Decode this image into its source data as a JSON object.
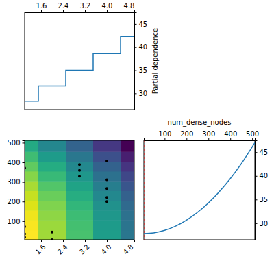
{
  "chart_data": [
    {
      "type": "line",
      "line_style": "step",
      "color": "#1f77b4",
      "ylabel": "Partial dependence",
      "x": [
        1,
        2,
        3,
        4,
        5
      ],
      "values": [
        28.3,
        31.6,
        35.0,
        38.6,
        42.3
      ],
      "xlim": [
        1,
        5
      ],
      "xticks": [
        1.6,
        2.4,
        3.2,
        {
          "value": 4,
          "label": "4.0"
        },
        4.8
      ],
      "ylim": [
        26.5,
        47.5
      ],
      "yticks": [
        30,
        35,
        40,
        45
      ]
    },
    {
      "type": "contour",
      "x_bins": [
        1,
        1.5,
        2.5,
        3.5,
        4.5,
        5
      ],
      "y_bins": [
        5,
        55,
        105,
        155,
        205,
        255,
        305,
        355,
        405,
        455,
        512
      ],
      "cells": [
        [
          28.3,
          31.6,
          35.0,
          38.6,
          42.3
        ],
        [
          28.5,
          31.8,
          35.2,
          38.8,
          42.5
        ],
        [
          28.9,
          32.2,
          35.6,
          39.2,
          42.9
        ],
        [
          29.5,
          32.8,
          36.2,
          39.8,
          43.5
        ],
        [
          30.3,
          33.6,
          37.0,
          40.6,
          44.3
        ],
        [
          31.3,
          34.6,
          38.0,
          41.6,
          45.3
        ],
        [
          32.5,
          35.8,
          39.2,
          42.8,
          46.5
        ],
        [
          33.9,
          37.2,
          40.6,
          44.2,
          47.9
        ],
        [
          35.5,
          38.8,
          42.2,
          45.8,
          49.5
        ],
        [
          37.4,
          40.7,
          44.1,
          47.7,
          51.4
        ]
      ],
      "points": {
        "x": [
          1,
          1,
          1,
          1,
          2,
          2,
          3,
          3,
          3,
          4,
          4,
          4,
          4,
          4
        ],
        "y": [
          371,
          71,
          35,
          17,
          44,
          5,
          389,
          359,
          329,
          407,
          311,
          266,
          221,
          200
        ]
      },
      "xlim": [
        1,
        5
      ],
      "xticks": [
        1.6,
        2.4,
        3.2,
        {
          "value": 4,
          "label": "4.0"
        },
        4.8
      ],
      "ylim": [
        5,
        512
      ],
      "yticks": [
        100,
        200,
        300,
        400,
        500
      ]
    },
    {
      "type": "line",
      "color": "#1f77b4",
      "xlabel": "num_dense_nodes",
      "x": [
        5,
        50,
        100,
        150,
        200,
        250,
        300,
        350,
        400,
        450,
        512
      ],
      "values": [
        27.8,
        27.95,
        28.48,
        29.38,
        30.65,
        32.29,
        34.29,
        36.68,
        39.43,
        42.55,
        47.0
      ],
      "minimum": 5,
      "xlim": [
        5,
        512
      ],
      "xticks": [
        100,
        200,
        300,
        400,
        500
      ],
      "ylim": [
        26.5,
        47.5
      ],
      "yticks": [
        30,
        35,
        40,
        45
      ]
    }
  ]
}
